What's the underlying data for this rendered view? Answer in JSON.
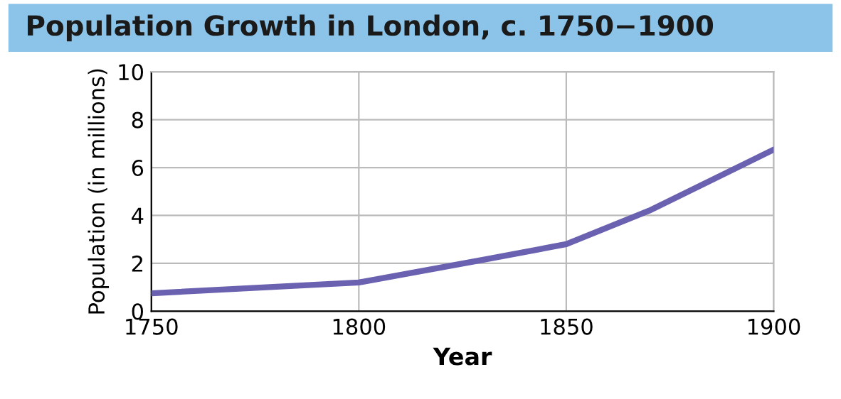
{
  "chart_data": {
    "type": "line",
    "title": "Population Growth in London, c. 1750−1900",
    "xlabel": "Year",
    "ylabel": "Population (in millions)",
    "x": [
      1750,
      1800,
      1830,
      1850,
      1870,
      1900
    ],
    "series": [
      {
        "color": "#6a62b0",
        "values": [
          0.75,
          1.2,
          2.15,
          2.8,
          4.2,
          6.75
        ]
      }
    ],
    "xlim": [
      1750,
      1900
    ],
    "xticks": [
      1750,
      1800,
      1850,
      1900
    ],
    "ylim": [
      0,
      10
    ],
    "yticks": [
      0,
      2,
      4,
      6,
      8,
      10
    ],
    "grid": true
  }
}
